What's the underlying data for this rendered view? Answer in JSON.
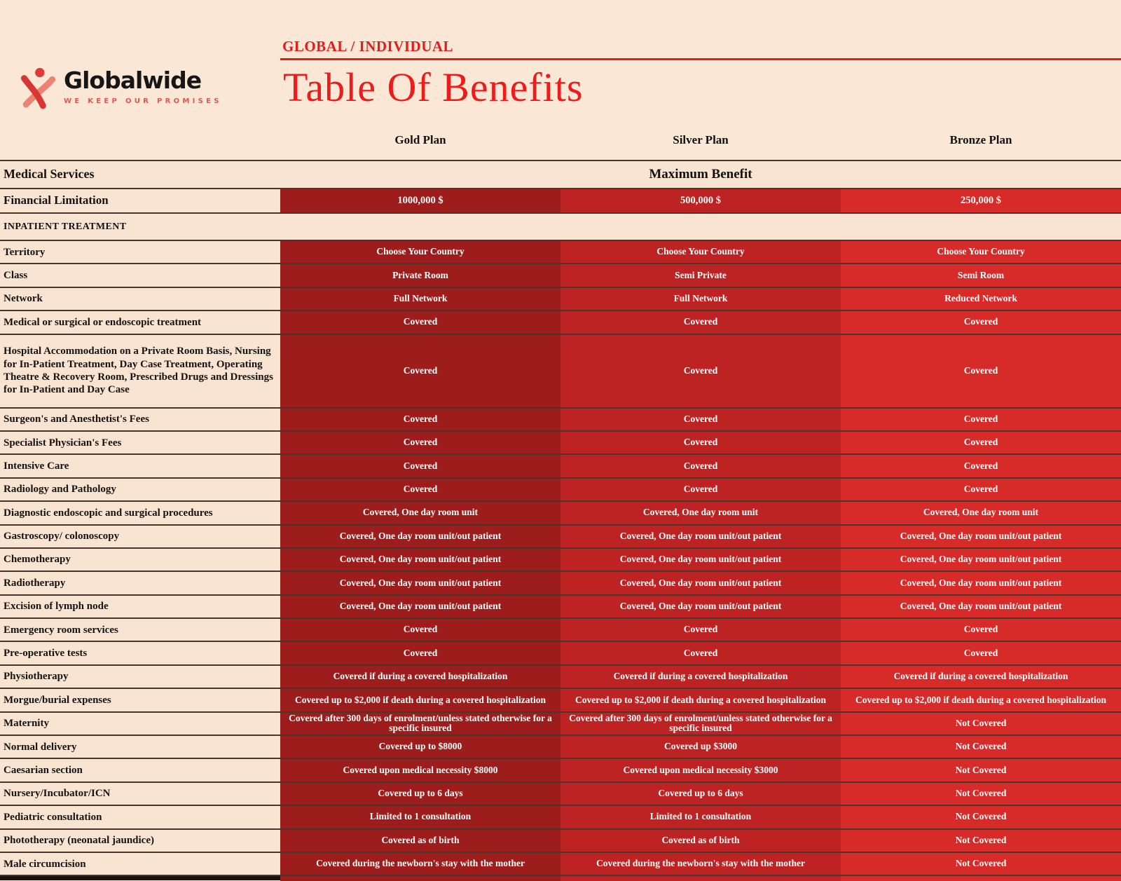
{
  "brand": {
    "name": "Globalwide",
    "tagline": "WE KEEP OUR PROMISES",
    "logo_icon": "person-figure-icon"
  },
  "header": {
    "category": "GLOBAL / INDIVIDUAL",
    "title": "Table Of Benefits"
  },
  "plans": [
    {
      "name": "Gold Plan",
      "color": "#9d1c1c"
    },
    {
      "name": "Silver Plan",
      "color": "#bd2323"
    },
    {
      "name": "Bronze Plan",
      "color": "#d72b29"
    }
  ],
  "table": {
    "services_header": "Medical Services",
    "benefit_header": "Maximum Benefit",
    "financial_limitation": {
      "label": "Financial Limitation",
      "values": [
        "1000,000 $",
        "500,000 $",
        "250,000 $"
      ]
    },
    "section": "INPATIENT TREATMENT",
    "rows": [
      {
        "label": "Territory",
        "values": [
          "Choose Your Country",
          "Choose Your Country",
          "Choose Your Country"
        ]
      },
      {
        "label": "Class",
        "values": [
          "Private Room",
          "Semi Private",
          "Semi Room"
        ]
      },
      {
        "label": "Network",
        "values": [
          "Full Network",
          "Full Network",
          "Reduced Network"
        ]
      },
      {
        "label": "Medical or surgical or endoscopic treatment",
        "values": [
          "Covered",
          "Covered",
          "Covered"
        ]
      },
      {
        "label": "Hospital Accommodation on a Private Room Basis, Nursing for In-Patient Treatment, Day Case Treatment, Operating Theatre & Recovery Room, Prescribed Drugs and Dressings for  In-Patient and Day Case",
        "values": [
          "Covered",
          "Covered",
          "Covered"
        ],
        "tall": true
      },
      {
        "label": "Surgeon's and Anesthetist's Fees",
        "values": [
          "Covered",
          "Covered",
          "Covered"
        ]
      },
      {
        "label": "Specialist Physician's Fees",
        "values": [
          "Covered",
          "Covered",
          "Covered"
        ]
      },
      {
        "label": "Intensive Care",
        "values": [
          "Covered",
          "Covered",
          "Covered"
        ]
      },
      {
        "label": "Radiology and Pathology",
        "values": [
          "Covered",
          "Covered",
          "Covered"
        ]
      },
      {
        "label": "Diagnostic endoscopic and surgical procedures",
        "values": [
          "Covered, One day room unit",
          "Covered, One day room unit",
          "Covered, One day room unit"
        ]
      },
      {
        "label": "Gastroscopy/ colonoscopy",
        "values": [
          "Covered, One day room unit/out patient",
          "Covered, One day room unit/out patient",
          "Covered, One day room unit/out patient"
        ]
      },
      {
        "label": "Chemotherapy",
        "values": [
          "Covered, One day room unit/out patient",
          "Covered, One day room unit/out patient",
          "Covered, One day room unit/out patient"
        ]
      },
      {
        "label": "Radiotherapy",
        "values": [
          "Covered, One day room unit/out patient",
          "Covered, One day room unit/out patient",
          "Covered, One day room unit/out patient"
        ]
      },
      {
        "label": "Excision of lymph node",
        "values": [
          "Covered, One day room unit/out patient",
          "Covered, One day room unit/out patient",
          "Covered, One day room unit/out patient"
        ]
      },
      {
        "label": "Emergency room services",
        "values": [
          "Covered",
          "Covered",
          "Covered"
        ]
      },
      {
        "label": "Pre-operative tests",
        "values": [
          "Covered",
          "Covered",
          "Covered"
        ]
      },
      {
        "label": "Physiotherapy",
        "values": [
          "Covered if during a covered hospitalization",
          "Covered if during a covered hospitalization",
          "Covered if during a covered hospitalization"
        ]
      },
      {
        "label": "Morgue/burial expenses",
        "values": [
          "Covered up to $2,000 if death during a covered hospitalization",
          "Covered up to $2,000 if death during a covered hospitalization",
          "Covered up to $2,000 if death during a covered hospitalization"
        ]
      },
      {
        "label": "Maternity",
        "values": [
          "Covered after 300 days of enrolment/unless stated otherwise for a specific insured",
          "Covered after 300 days of enrolment/unless stated otherwise for a specific insured",
          "Not Covered"
        ]
      },
      {
        "label": "Normal delivery",
        "values": [
          "Covered up to $8000",
          "Covered up  $3000",
          "Not Covered"
        ]
      },
      {
        "label": "Caesarian section",
        "values": [
          "Covered upon medical necessity $8000",
          "Covered upon medical necessity $3000",
          "Not Covered"
        ]
      },
      {
        "label": "Nursery/Incubator/ICN",
        "values": [
          "Covered up to 6 days",
          "Covered up to 6 days",
          "Not Covered"
        ]
      },
      {
        "label": "Pediatric consultation",
        "values": [
          "Limited to 1 consultation",
          "Limited to 1 consultation",
          "Not Covered"
        ]
      },
      {
        "label": "Phototherapy (neonatal jaundice)",
        "values": [
          "Covered as of birth",
          "Covered as of birth",
          "Not Covered"
        ]
      },
      {
        "label": "Male circumcision",
        "values": [
          "Covered during the newborn's stay with the mother",
          "Covered during the newborn's stay with the mother",
          "Not Covered"
        ]
      }
    ]
  },
  "colors": {
    "bg": "#fbe7d6",
    "cell_cream": "#f9e4d1",
    "border": "#46362c",
    "red_text": "#e41c1c",
    "red_title": "#ee1b1b",
    "logo_crimson": "#d93535",
    "logo_salmon": "#ef8170"
  }
}
